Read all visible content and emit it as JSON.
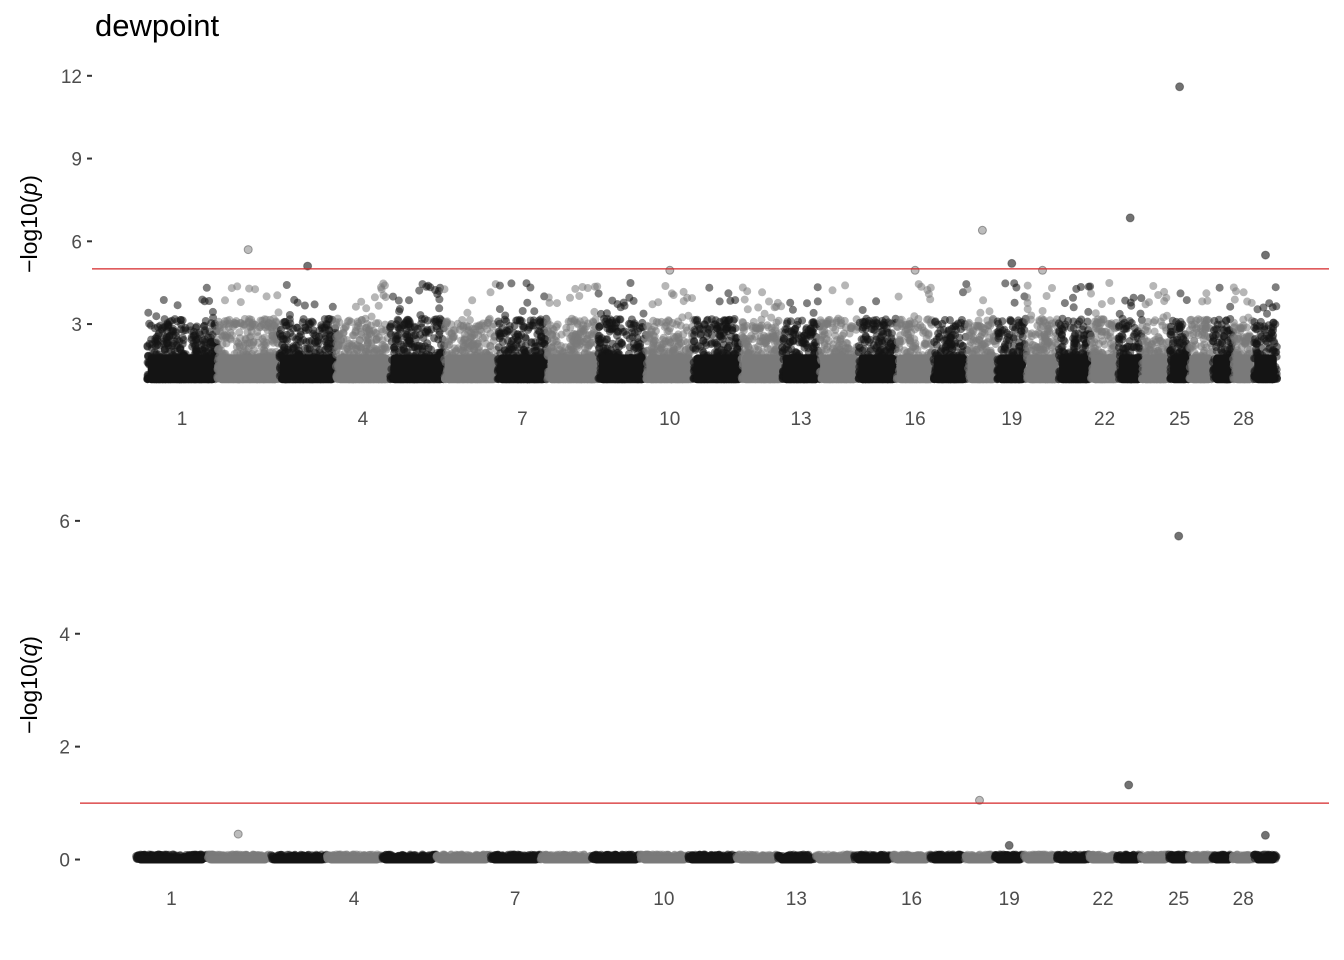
{
  "chart_data": [
    {
      "type": "scatter",
      "title": "dewpoint",
      "ylabel_prefix": "−log10(",
      "ylabel_var": "p",
      "ylabel_suffix": ")",
      "ylim": [
        0.9,
        12.5
      ],
      "yticks": [
        3,
        6,
        9,
        12
      ],
      "threshold": 5,
      "threshold_color": "#d62728",
      "chromosomes": 29,
      "xtick_chromosomes": [
        1,
        4,
        7,
        10,
        13,
        16,
        19,
        22,
        25,
        28
      ],
      "colors": [
        "#141414",
        "#7a7a7a"
      ],
      "highlighted_points": [
        {
          "chr": 2,
          "y": 5.7
        },
        {
          "chr": 18,
          "y": 6.4
        },
        {
          "chr": 23,
          "y": 6.85
        },
        {
          "chr": 25,
          "y": 11.6
        },
        {
          "chr": 3,
          "y": 5.1
        },
        {
          "chr": 29,
          "y": 5.5
        },
        {
          "chr": 19,
          "y": 5.2
        },
        {
          "chr": 20,
          "y": 4.95
        },
        {
          "chr": 16,
          "y": 4.95
        },
        {
          "chr": 10,
          "y": 4.95
        }
      ]
    },
    {
      "type": "scatter",
      "title": "",
      "ylabel_prefix": "−log10(",
      "ylabel_var": "q",
      "ylabel_suffix": ")",
      "ylim": [
        -0.15,
        6.6
      ],
      "yticks": [
        0,
        2,
        4,
        6
      ],
      "threshold": 1,
      "threshold_color": "#d62728",
      "chromosomes": 29,
      "xtick_chromosomes": [
        1,
        4,
        7,
        10,
        13,
        16,
        19,
        22,
        25,
        28
      ],
      "colors": [
        "#141414",
        "#7a7a7a"
      ],
      "highlighted_points": [
        {
          "chr": 25,
          "y": 5.73
        },
        {
          "chr": 23,
          "y": 1.32
        },
        {
          "chr": 18,
          "y": 1.05
        },
        {
          "chr": 2,
          "y": 0.45
        },
        {
          "chr": 29,
          "y": 0.43
        },
        {
          "chr": 19,
          "y": 0.25
        }
      ]
    }
  ]
}
